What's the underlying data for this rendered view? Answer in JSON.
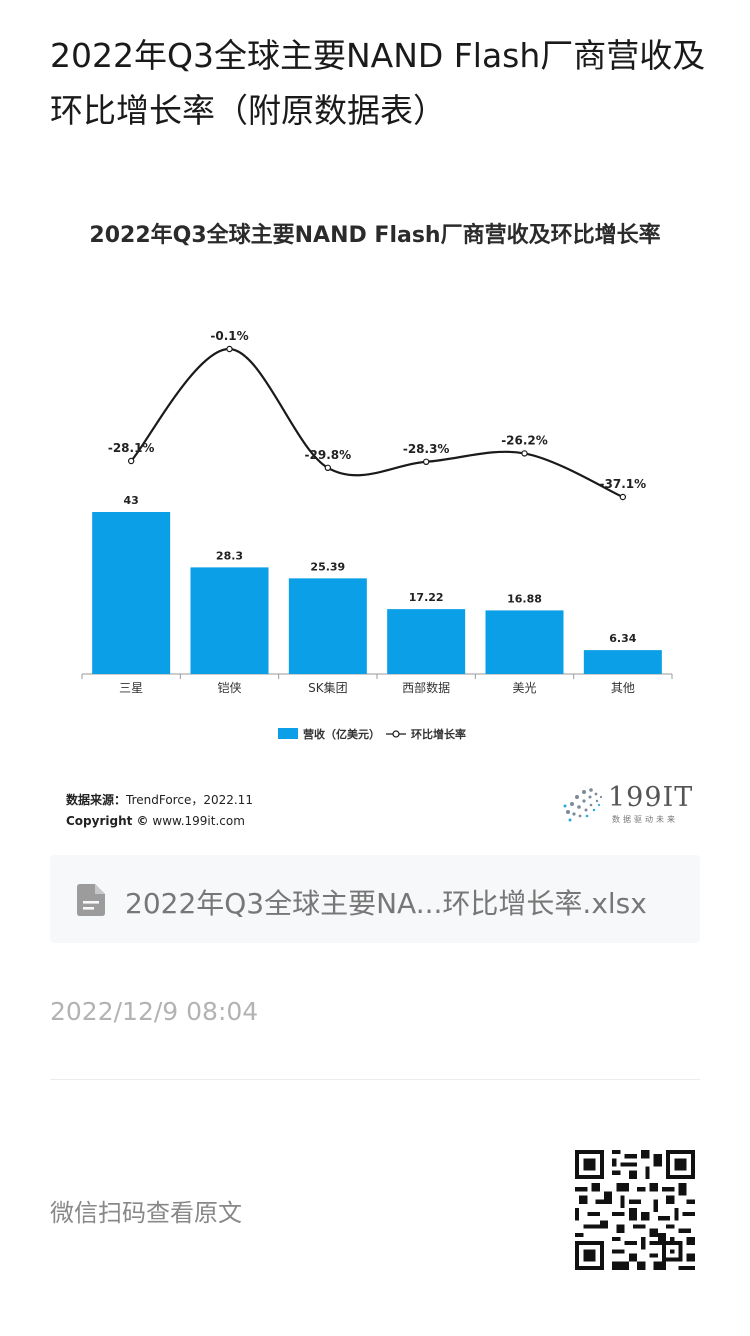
{
  "article": {
    "title": "2022年Q3全球主要NAND Flash厂商营收及环比增长率（附原数据表）",
    "timestamp": "2022/12/9 08:04",
    "scan_prompt": "微信扫码查看原文"
  },
  "attachment": {
    "file_name": "2022年Q3全球主要NA...环比增长率.xlsx",
    "icon": "file-document-icon"
  },
  "source": {
    "label": "数据来源：",
    "value": "TrendForce，2022.11",
    "copyright_label": "Copyright ©",
    "copyright_value": "www.199it.com"
  },
  "logo": {
    "text": "199IT",
    "tagline": "数据驱动未来"
  },
  "colors": {
    "bar": "#0a9fe6",
    "line": "#1a1a1a",
    "axis": "#9a9a9a"
  },
  "chart_data": {
    "type": "bar",
    "title": "2022年Q3全球主要NAND Flash厂商营收及环比增长率",
    "categories": [
      "三星",
      "铠侠",
      "SK集团",
      "西部数据",
      "美光",
      "其他"
    ],
    "series": [
      {
        "name": "营收（亿美元）",
        "type": "bar",
        "values": [
          43,
          28.3,
          25.39,
          17.22,
          16.88,
          6.34
        ],
        "labels": [
          "43",
          "28.3",
          "25.39",
          "17.22",
          "16.88",
          "6.34"
        ]
      },
      {
        "name": "环比增长率",
        "type": "line",
        "values": [
          -28.1,
          -0.1,
          -29.8,
          -28.3,
          -26.2,
          -37.1
        ],
        "labels": [
          "-28.1%",
          "-0.1%",
          "-29.8%",
          "-28.3%",
          "-26.2%",
          "-37.1%"
        ]
      }
    ],
    "legend_position": "bottom",
    "grid": false
  }
}
